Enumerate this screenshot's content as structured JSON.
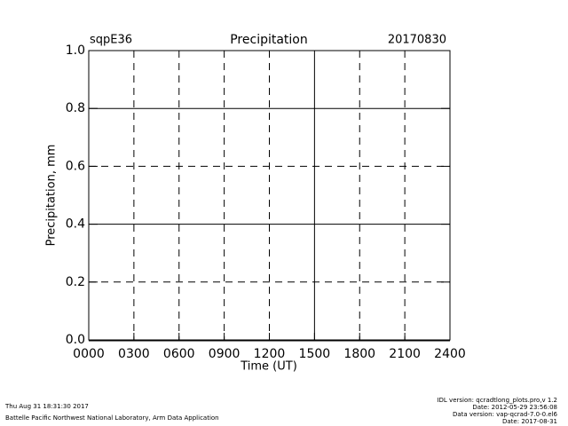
{
  "chart_data": {
    "type": "line",
    "station": "sqpE36",
    "title": "Precipitation",
    "date": "20170830",
    "xlabel": "Time (UT)",
    "ylabel": "Precipitation, mm",
    "xlim": [
      0,
      24
    ],
    "xticks": [
      {
        "value": 0,
        "label": "0000"
      },
      {
        "value": 3,
        "label": "0300"
      },
      {
        "value": 6,
        "label": "0600"
      },
      {
        "value": 9,
        "label": "0900"
      },
      {
        "value": 12,
        "label": "1200"
      },
      {
        "value": 15,
        "label": "1500"
      },
      {
        "value": 18,
        "label": "1800"
      },
      {
        "value": 21,
        "label": "2100"
      },
      {
        "value": 24,
        "label": "2400"
      }
    ],
    "ylim": [
      0,
      1
    ],
    "yticks": [
      {
        "value": 0,
        "label": "0.0"
      },
      0.2,
      0.4,
      0.6,
      0.8,
      {
        "value": 1,
        "label": "1.0"
      }
    ],
    "grid": true,
    "series": [],
    "footer_left": [
      "Thu Aug 31 18:31:30 2017",
      "Battelle Pacific Northwest National Laboratory, Arm Data Application"
    ],
    "footer_right": [
      "IDL version: qcradtlong_plots.pro,v 1.2",
      "Date: 2012-05-29 23:56:08",
      "Data version: vap-qcrad-7.0-0.el6",
      "Date: 2017-08-31"
    ]
  }
}
